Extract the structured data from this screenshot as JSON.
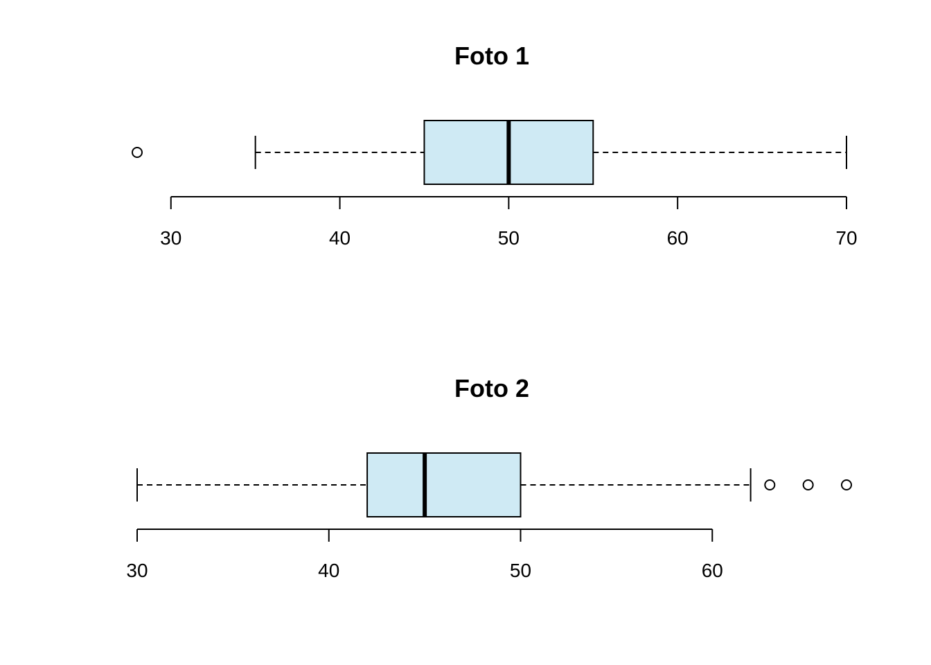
{
  "chart_data": [
    {
      "type": "boxplot",
      "orientation": "horizontal",
      "title": "Foto 1",
      "xlim": [
        28,
        70
      ],
      "ticks": [
        30,
        40,
        50,
        60,
        70
      ],
      "tick_labels": [
        "30",
        "40",
        "50",
        "60",
        "70"
      ],
      "whisker_low": 35,
      "q1": 45,
      "median": 50,
      "q3": 55,
      "whisker_high": 70,
      "outliers": [
        28
      ],
      "box_color": "#cfeaf4",
      "grid": false
    },
    {
      "type": "boxplot",
      "orientation": "horizontal",
      "title": "Foto 2",
      "xlim": [
        30,
        67
      ],
      "ticks": [
        30,
        40,
        50,
        60
      ],
      "tick_labels": [
        "30",
        "40",
        "50",
        "60"
      ],
      "whisker_low": 30,
      "q1": 42,
      "median": 45,
      "q3": 50,
      "whisker_high": 62,
      "outliers": [
        63,
        65,
        67
      ],
      "box_color": "#cfeaf4",
      "grid": false
    }
  ]
}
